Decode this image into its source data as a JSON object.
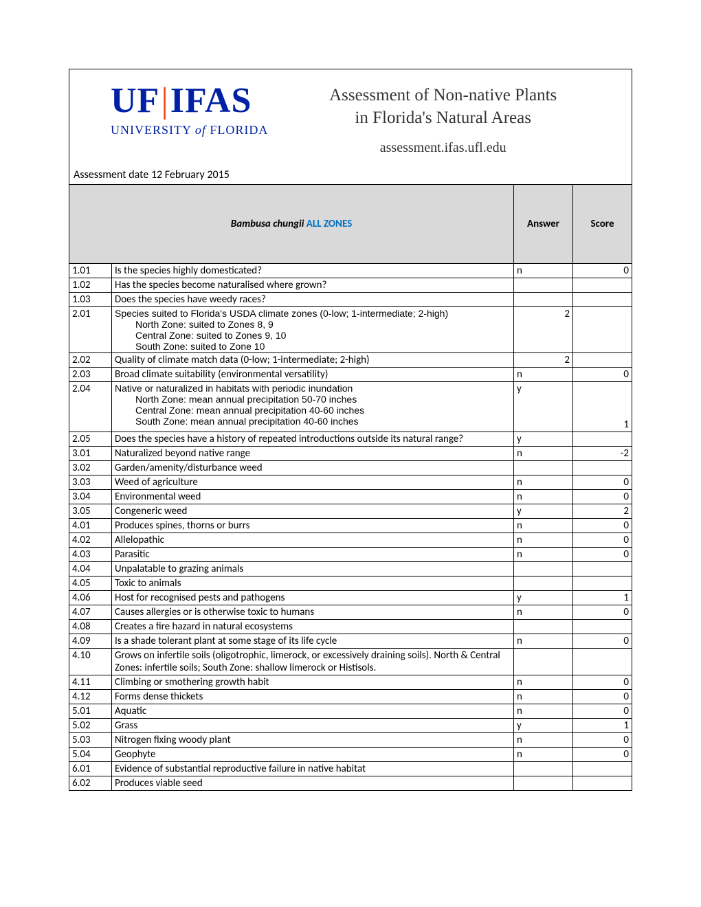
{
  "logo": {
    "uf": "UF",
    "ifas": "IFAS",
    "university": "UNIVERSITY",
    "of": "of",
    "florida": "FLORIDA"
  },
  "header": {
    "title_line1": "Assessment of Non-native Plants",
    "title_line2": "in Florida's Natural Areas",
    "url": "assessment.ifas.ufl.edu"
  },
  "assessment_date": "Assessment date 12 February 2015",
  "table_header": {
    "species": "Bambusa chungii",
    "zone": " ALL ZONES",
    "answer": "Answer",
    "score": "Score"
  },
  "rows": [
    {
      "num": "1.01",
      "q": "Is the species highly domesticated?",
      "ans": "n",
      "score": "0"
    },
    {
      "num": "1.02",
      "q": "Has the species become naturalised where grown?",
      "ans": "",
      "score": ""
    },
    {
      "num": "1.03",
      "q": "Does the species have weedy races?",
      "ans": "",
      "score": ""
    },
    {
      "num": "2.01",
      "q": "",
      "q_sub0": "Species suited to Florida's USDA climate zones (0-low; 1-intermediate; 2-high)",
      "q_sub1": "North Zone: suited to Zones 8, 9",
      "q_sub2": "Central Zone: suited to Zones 9, 10",
      "q_sub3": "South Zone: suited to Zone 10",
      "ans": "2",
      "score": ""
    },
    {
      "num": "2.02",
      "q": "Quality of climate match data (0-low; 1-intermediate; 2-high)",
      "ans": "2",
      "score": ""
    },
    {
      "num": "2.03",
      "q": "Broad climate suitability (environmental versatility)",
      "ans": "n",
      "score": "0"
    },
    {
      "num": "2.04",
      "q": "",
      "q_sub0": "Native or naturalized in habitats with periodic inundation",
      "q_sub1": "North Zone: mean annual precipitation 50-70 inches",
      "q_sub2": "Central Zone: mean annual precipitation 40-60 inches",
      "q_sub3": "South Zone: mean annual precipitation 40-60 inches",
      "ans": "y",
      "score": "1"
    },
    {
      "num": "2.05",
      "q": "Does the species have a history of repeated introductions outside its natural range?",
      "ans": "y",
      "score": ""
    },
    {
      "num": "3.01",
      "q": "Naturalized beyond native range",
      "ans": "n",
      "score": "-2"
    },
    {
      "num": "3.02",
      "q": "Garden/amenity/disturbance weed",
      "ans": "",
      "score": ""
    },
    {
      "num": "3.03",
      "q": "Weed of agriculture",
      "ans": "n",
      "score": "0"
    },
    {
      "num": "3.04",
      "q": "Environmental weed",
      "ans": "n",
      "score": "0"
    },
    {
      "num": "3.05",
      "q": "Congeneric weed",
      "ans": "y",
      "score": "2"
    },
    {
      "num": "4.01",
      "q": "Produces spines, thorns or burrs",
      "ans": "n",
      "score": "0"
    },
    {
      "num": "4.02",
      "q": "Allelopathic",
      "ans": "n",
      "score": "0"
    },
    {
      "num": "4.03",
      "q": "Parasitic",
      "ans": "n",
      "score": "0"
    },
    {
      "num": "4.04",
      "q": "Unpalatable to grazing animals",
      "ans": "",
      "score": ""
    },
    {
      "num": "4.05",
      "q": "Toxic to animals",
      "ans": "",
      "score": ""
    },
    {
      "num": "4.06",
      "q": "Host for recognised pests and pathogens",
      "ans": "y",
      "score": "1"
    },
    {
      "num": "4.07",
      "q": "Causes allergies or is otherwise toxic to humans",
      "ans": "n",
      "score": "0"
    },
    {
      "num": "4.08",
      "q": "Creates a fire hazard in natural ecosystems",
      "ans": "",
      "score": ""
    },
    {
      "num": "4.09",
      "q": "Is a shade tolerant plant at some stage of its life cycle",
      "ans": "n",
      "score": "0"
    },
    {
      "num": "4.10",
      "q": "Grows on infertile soils (oligotrophic, limerock, or excessively draining soils).  North & Central Zones: infertile soils; South Zone: shallow limerock or Histisols.",
      "ans": "",
      "score": ""
    },
    {
      "num": "4.11",
      "q": "Climbing or smothering growth habit",
      "ans": "n",
      "score": "0"
    },
    {
      "num": "4.12",
      "q": "Forms dense thickets",
      "ans": "n",
      "score": "0"
    },
    {
      "num": "5.01",
      "q": "Aquatic",
      "ans": "n",
      "score": "0"
    },
    {
      "num": "5.02",
      "q": "Grass",
      "ans": "y",
      "score": "1"
    },
    {
      "num": "5.03",
      "q": "Nitrogen fixing woody plant",
      "ans": "n",
      "score": "0"
    },
    {
      "num": "5.04",
      "q": "Geophyte",
      "ans": "n",
      "score": "0"
    },
    {
      "num": "6.01",
      "q": "Evidence of substantial reproductive failure in native habitat",
      "ans": "",
      "score": ""
    },
    {
      "num": "6.02",
      "q": "Produces viable seed",
      "ans": "",
      "score": ""
    }
  ]
}
